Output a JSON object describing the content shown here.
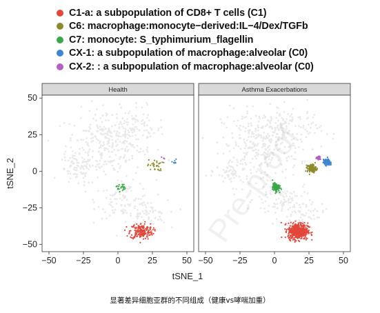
{
  "legend": [
    {
      "label": "C1-a: a subpopulation of CD8+ T cells (C1)",
      "color": "#e2473a"
    },
    {
      "label": "C6: macrophage:monocyte−derived:IL−4/Dex/TGFb",
      "color": "#8d8a2c"
    },
    {
      "label": "C7: monocyte: S_typhimurium_flagellin",
      "color": "#3aa84a"
    },
    {
      "label": "CX-1: a subpopulation of macrophage:alveolar (C0)",
      "color": "#3d86d1"
    },
    {
      "label": "CX-2: : a subpopulation of macrophage:alveolar (C0)",
      "color": "#b55fc0"
    }
  ],
  "caption": "显著差异细胞亚群的不同组成（健康vs哮喘加重）",
  "watermark": "Pre-proof",
  "background_color": "#e9e9e9",
  "chart_data": {
    "type": "scatter",
    "xlabel": "tSNE_1",
    "ylabel": "tSNE_2",
    "xlim": [
      -55,
      55
    ],
    "ylim": [
      -55,
      52
    ],
    "x_ticks": [
      -50,
      -25,
      0,
      25,
      50
    ],
    "y_ticks": [
      50,
      25,
      0,
      -25,
      -50
    ],
    "x_tick_labels": [
      "−50",
      "−25",
      "0",
      "25",
      "50"
    ],
    "y_tick_labels": [
      "50",
      "25",
      "0",
      "−25",
      "−50"
    ],
    "panels": [
      {
        "title": "Health",
        "clusters": [
          {
            "name": "C1-a: a subpopulation of CD8+ T cells (C1)",
            "color": "#e2473a",
            "center": [
              17,
              -41
            ],
            "spread": [
              7.5,
              5
            ],
            "count": 190
          },
          {
            "name": "C6: macrophage:monocyte−derived:IL−4/Dex/TGFb",
            "color": "#8d8a2c",
            "center": [
              27,
              4
            ],
            "spread": [
              5,
              3.5
            ],
            "count": 30
          },
          {
            "name": "C7: monocyte: S_typhimurium_flagellin",
            "color": "#3aa84a",
            "center": [
              2,
              -11
            ],
            "spread": [
              3,
              2.5
            ],
            "count": 22
          },
          {
            "name": "CX-1: a subpopulation of macrophage:alveolar (C0)",
            "color": "#3d86d1",
            "center": [
              41,
              6
            ],
            "spread": [
              1.5,
              2
            ],
            "count": 9
          },
          {
            "name": "CX-2: : a subpopulation of macrophage:alveolar (C0)",
            "color": "#b55fc0",
            "center": [
              33,
              9
            ],
            "spread": [
              1.2,
              0.8
            ],
            "count": 4
          }
        ]
      },
      {
        "title": "Asthma Exacerbations",
        "clusters": [
          {
            "name": "C1-a: a subpopulation of CD8+ T cells (C1)",
            "color": "#e2473a",
            "center": [
              17,
              -41
            ],
            "spread": [
              6.5,
              5
            ],
            "count": 520
          },
          {
            "name": "C6: macrophage:monocyte−derived:IL−4/Dex/TGFb",
            "color": "#8d8a2c",
            "center": [
              27,
              2
            ],
            "spread": [
              2.8,
              2.5
            ],
            "count": 140
          },
          {
            "name": "C7: monocyte: S_typhimurium_flagellin",
            "color": "#3aa84a",
            "center": [
              1,
              -11
            ],
            "spread": [
              2.2,
              2.5
            ],
            "count": 130
          },
          {
            "name": "CX-1: a subpopulation of macrophage:alveolar (C0)",
            "color": "#3d86d1",
            "center": [
              38,
              6
            ],
            "spread": [
              2.2,
              1.8
            ],
            "count": 170
          },
          {
            "name": "CX-2: : a subpopulation of macrophage:alveolar (C0)",
            "color": "#b55fc0",
            "center": [
              32,
              9
            ],
            "spread": [
              1.5,
              1
            ],
            "count": 30
          }
        ]
      }
    ]
  }
}
